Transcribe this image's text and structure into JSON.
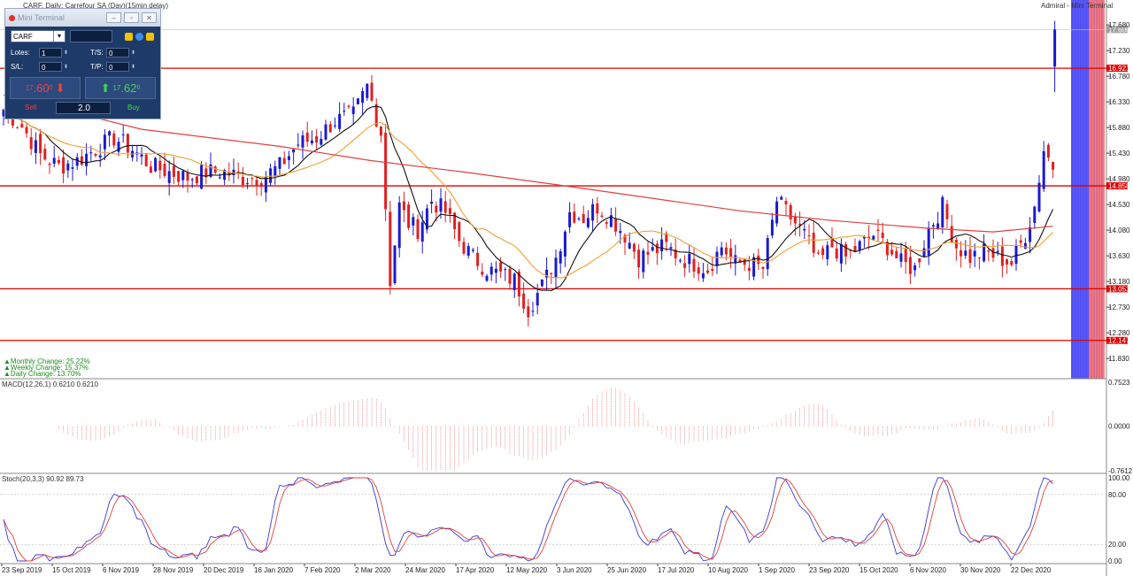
{
  "header": {
    "symbol_line": "CARF, Daily: Carrefour SA (Day)(15min delay)",
    "broker_label": "Admiral - Mini Terminal"
  },
  "mini_terminal": {
    "title": "Mini Terminal",
    "symbol": "CARF",
    "lots_label": "Lotes:",
    "lots_value": "1",
    "ts_label": "T/S:",
    "ts_value": "0",
    "sl_label": "S/L:",
    "sl_value": "0",
    "tp_label": "T/P:",
    "tp_value": "0",
    "sell_price_small": "17",
    "sell_price_big": ".60",
    "sell_price_sup": "0",
    "buy_price_small": "17",
    "buy_price_big": ".62",
    "buy_price_sup": "0",
    "sell_label": "Sell",
    "buy_label": "Buy",
    "spread": "2.0",
    "colors": {
      "panel": "#1e3a68",
      "sell": "#ff3d3d",
      "buy": "#3fd94b"
    }
  },
  "chart_data": [
    {
      "type": "candlestick",
      "title": "CARF, Daily",
      "ylim": [
        11.6,
        17.9
      ],
      "y_ticks": [
        "17.680",
        "17.230",
        "16.780",
        "16.330",
        "15.880",
        "15.430",
        "14.980",
        "14.530",
        "14.080",
        "13.630",
        "13.180",
        "12.730",
        "12.280",
        "11.830"
      ],
      "x_labels": [
        "23 Sep 2019",
        "15 Oct 2019",
        "6 Nov 2019",
        "28 Nov 2019",
        "20 Dec 2019",
        "16 Jan 2020",
        "7 Feb 2020",
        "2 Mar 2020",
        "24 Mar 2020",
        "17 Apr 2020",
        "12 May 2020",
        "3 Jun 2020",
        "25 Jun 2020",
        "17 Jul 2020",
        "10 Aug 2020",
        "1 Sep 2020",
        "23 Sep 2020",
        "15 Oct 2020",
        "6 Nov 2020",
        "30 Nov 2020",
        "22 Dec 2020"
      ],
      "horizontal_levels": [
        {
          "value": 16.921,
          "label": "16.921"
        },
        {
          "value": 14.858,
          "label": "14.858"
        },
        {
          "value": 13.053,
          "label": "13.053"
        },
        {
          "value": 12.147,
          "label": "12.147"
        }
      ],
      "current_price": {
        "value": 17.6,
        "label": "17.600"
      },
      "candles_ohlc": [],
      "close_path_anchors": [
        [
          0,
          16.2
        ],
        [
          4,
          15.9
        ],
        [
          8,
          15.4
        ],
        [
          12,
          15.2
        ],
        [
          16,
          15.3
        ],
        [
          20,
          15.5
        ],
        [
          24,
          15.7
        ],
        [
          28,
          15.5
        ],
        [
          32,
          15.2
        ],
        [
          36,
          15.1
        ],
        [
          40,
          15.0
        ],
        [
          44,
          15.1
        ],
        [
          48,
          15.1
        ],
        [
          52,
          15.0
        ],
        [
          56,
          15.0
        ],
        [
          60,
          15.2
        ],
        [
          64,
          15.6
        ],
        [
          68,
          15.7
        ],
        [
          72,
          16.0
        ],
        [
          76,
          16.1
        ],
        [
          79,
          16.6
        ],
        [
          82,
          15.8
        ],
        [
          84,
          13.2
        ],
        [
          86,
          14.5
        ],
        [
          88,
          14.2
        ],
        [
          90,
          14.1
        ],
        [
          93,
          14.6
        ],
        [
          96,
          14.4
        ],
        [
          99,
          13.9
        ],
        [
          102,
          13.6
        ],
        [
          105,
          13.4
        ],
        [
          108,
          13.3
        ],
        [
          111,
          13.2
        ],
        [
          114,
          12.7
        ],
        [
          117,
          13.1
        ],
        [
          120,
          13.6
        ],
        [
          123,
          14.4
        ],
        [
          126,
          14.3
        ],
        [
          129,
          14.5
        ],
        [
          132,
          14.3
        ],
        [
          135,
          14.0
        ],
        [
          138,
          13.6
        ],
        [
          141,
          13.7
        ],
        [
          144,
          13.8
        ],
        [
          147,
          13.6
        ],
        [
          150,
          13.5
        ],
        [
          153,
          13.4
        ],
        [
          156,
          13.8
        ],
        [
          159,
          13.5
        ],
        [
          162,
          13.5
        ],
        [
          165,
          13.4
        ],
        [
          168,
          14.6
        ],
        [
          171,
          14.3
        ],
        [
          174,
          14.0
        ],
        [
          177,
          13.5
        ],
        [
          180,
          13.8
        ],
        [
          183,
          13.6
        ],
        [
          186,
          13.8
        ],
        [
          189,
          14.0
        ],
        [
          192,
          13.8
        ],
        [
          195,
          13.5
        ],
        [
          198,
          13.4
        ],
        [
          201,
          14.1
        ],
        [
          204,
          14.5
        ],
        [
          207,
          13.8
        ],
        [
          210,
          13.6
        ],
        [
          213,
          13.7
        ],
        [
          216,
          13.6
        ],
        [
          219,
          13.5
        ],
        [
          222,
          14.0
        ],
        [
          224,
          14.5
        ],
        [
          226,
          15.5
        ],
        [
          228,
          15.2
        ]
      ],
      "indicators": {
        "sma_black": "short moving average",
        "sma_orange": "medium moving average",
        "sma_red": "long moving average"
      },
      "annotations": [
        "Monthly Change: 25.22%",
        "Weekly Change: 15.37%",
        "Daily Change: 13.70%"
      ]
    },
    {
      "type": "bar",
      "title": "MACD(12,26,1) 0.6210 0.6210",
      "ylim": [
        -0.7612,
        0.7523
      ],
      "y_ticks": [
        "0.7523",
        "0.0000",
        "-0.7612"
      ]
    },
    {
      "type": "line",
      "title": "Stoch(20,3,3) 90.92 89.73",
      "ylim": [
        0,
        100
      ],
      "y_ticks": [
        "100.00",
        "80.00",
        "20.00",
        "0.00"
      ]
    }
  ]
}
